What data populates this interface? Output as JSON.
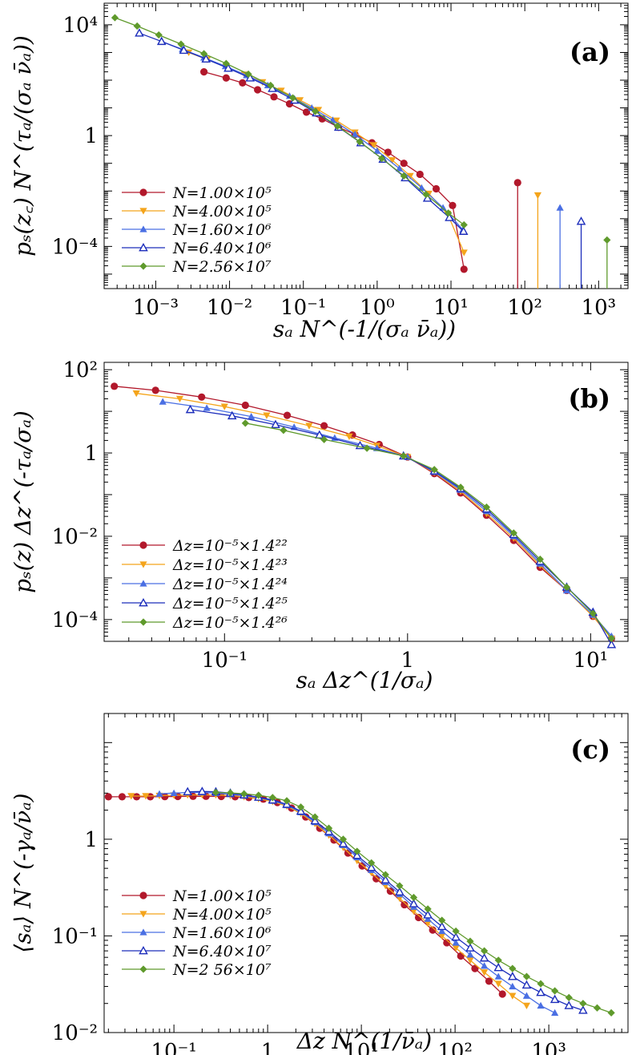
{
  "chart_data": [
    {
      "panel_label": "(a)",
      "type": "line",
      "xscale": "log",
      "yscale": "log",
      "xlim": [
        0.0002,
        2500
      ],
      "ylim": [
        3e-06,
        60000
      ],
      "xticks": [
        {
          "v": 0.001,
          "label": "10⁻³"
        },
        {
          "v": 0.01,
          "label": "10⁻²"
        },
        {
          "v": 0.1,
          "label": "10⁻¹"
        },
        {
          "v": 1,
          "label": "10⁰"
        },
        {
          "v": 10,
          "label": "10¹"
        },
        {
          "v": 100,
          "label": "10²"
        },
        {
          "v": 1000,
          "label": "10³"
        }
      ],
      "yticks": [
        {
          "v": 0.0001,
          "label": "10⁻⁴"
        },
        {
          "v": 1,
          "label": "1"
        },
        {
          "v": 10000,
          "label": "10⁴"
        }
      ],
      "xlabel": "s_a N^{-1/(σ_a ν̄_a)}",
      "ylabel": "p_s(z_c) N^{τ_a/(σ_a ν̄_a)}",
      "legend_position": "bottom-left",
      "series": [
        {
          "name": "N=1.00×10⁵",
          "color": "#b2182b",
          "marker": "circle",
          "x": [
            0.0045,
            0.009,
            0.015,
            0.024,
            0.04,
            0.065,
            0.11,
            0.18,
            0.3,
            0.5,
            0.85,
            1.4,
            2.3,
            3.8,
            6.3,
            10.5,
            15.0
          ],
          "y": [
            200,
            120,
            80,
            45,
            25,
            14,
            7,
            4,
            2,
            1.1,
            0.55,
            0.25,
            0.1,
            0.04,
            0.012,
            0.003,
            1.5e-05
          ],
          "spike_x": 80,
          "spike_y": 0.02
        },
        {
          "name": "N=4.00×10⁵",
          "color": "#f4a41b",
          "marker": "triangle-down",
          "x": [
            0.0028,
            0.005,
            0.009,
            0.016,
            0.028,
            0.05,
            0.09,
            0.16,
            0.28,
            0.5,
            0.9,
            1.6,
            2.8,
            5.0,
            9.0,
            15.0
          ],
          "y": [
            1000,
            560,
            300,
            160,
            85,
            42,
            19,
            8.5,
            3.5,
            1.3,
            0.45,
            0.13,
            0.035,
            0.008,
            0.0015,
            6e-05
          ],
          "spike_x": 150,
          "spike_y": 0.007
        },
        {
          "name": "N=1.60×10⁶",
          "color": "#4a6fe3",
          "marker": "triangle-up",
          "x": [
            0.0012,
            0.0023,
            0.0045,
            0.0088,
            0.017,
            0.033,
            0.065,
            0.13,
            0.25,
            0.5,
            1.0,
            2.0,
            4.0,
            7.8,
            14.5
          ],
          "y": [
            2500,
            1300,
            650,
            320,
            150,
            65,
            27,
            10,
            3.6,
            1.1,
            0.28,
            0.065,
            0.013,
            0.0025,
            0.0004
          ],
          "spike_x": 300,
          "spike_y": 0.0025
        },
        {
          "name": "N=6.40×10⁶",
          "color": "#1c2dbb",
          "marker": "triangle-up-open",
          "x": [
            0.0006,
            0.0012,
            0.0024,
            0.0048,
            0.0096,
            0.019,
            0.038,
            0.076,
            0.15,
            0.3,
            0.6,
            1.2,
            2.4,
            4.8,
            9.5,
            14.8
          ],
          "y": [
            5000,
            2500,
            1200,
            580,
            270,
            120,
            50,
            19,
            6.6,
            2.0,
            0.55,
            0.14,
            0.03,
            0.0055,
            0.0011,
            0.00035
          ],
          "spike_x": 580,
          "spike_y": 0.0008
        },
        {
          "name": "N=2.56×10⁷",
          "color": "#5f9a2c",
          "marker": "diamond",
          "x": [
            0.00028,
            0.00056,
            0.0011,
            0.0022,
            0.0045,
            0.009,
            0.018,
            0.036,
            0.072,
            0.145,
            0.29,
            0.58,
            1.15,
            2.3,
            4.6,
            9.2,
            15.0
          ],
          "y": [
            18000,
            9000,
            4300,
            2000,
            900,
            400,
            165,
            65,
            23,
            7.5,
            2.2,
            0.6,
            0.15,
            0.035,
            0.0075,
            0.0016,
            0.0006
          ],
          "spike_x": 1300,
          "spike_y": 0.00017
        }
      ]
    },
    {
      "panel_label": "(b)",
      "type": "line",
      "xscale": "log",
      "yscale": "log",
      "xlim": [
        0.022,
        16
      ],
      "ylim": [
        3e-05,
        150
      ],
      "xticks": [
        {
          "v": 0.1,
          "label": "10⁻¹"
        },
        {
          "v": 1,
          "label": "1"
        },
        {
          "v": 10,
          "label": "10¹"
        }
      ],
      "yticks": [
        {
          "v": 0.0001,
          "label": "10⁻⁴"
        },
        {
          "v": 0.01,
          "label": "10⁻²"
        },
        {
          "v": 1,
          "label": "1"
        },
        {
          "v": 100,
          "label": "10²"
        }
      ],
      "xlabel": "s_a Δz^{1/σ_a}",
      "ylabel": "p_s(z) Δz^{-τ_a/σ_a}",
      "legend_position": "bottom-left",
      "series": [
        {
          "name": "Δz=10⁻⁵×1.4²²",
          "color": "#b2182b",
          "marker": "circle",
          "x": [
            0.025,
            0.042,
            0.075,
            0.13,
            0.22,
            0.35,
            0.5,
            0.7,
            1.0,
            1.4,
            1.95,
            2.7,
            3.8,
            5.3,
            7.4,
            10.3,
            13.0
          ],
          "y": [
            40,
            32,
            22,
            14,
            8,
            4.5,
            2.7,
            1.6,
            0.8,
            0.32,
            0.11,
            0.032,
            0.008,
            0.0018,
            0.0005,
            0.00012,
            3.5e-05
          ]
        },
        {
          "name": "Δz=10⁻⁵×1.4²³",
          "color": "#f4a41b",
          "marker": "triangle-down",
          "x": [
            0.033,
            0.057,
            0.1,
            0.17,
            0.29,
            0.48,
            0.68,
            1.0,
            1.4,
            1.95,
            2.7,
            3.8,
            5.3,
            7.4,
            10.3,
            13.0
          ],
          "y": [
            27,
            20,
            13,
            8,
            4.5,
            2.5,
            1.5,
            0.8,
            0.34,
            0.12,
            0.035,
            0.009,
            0.002,
            0.0005,
            0.00012,
            3.5e-05
          ]
        },
        {
          "name": "Δz=10⁻⁵×1.4²⁴",
          "color": "#4a6fe3",
          "marker": "triangle-up",
          "x": [
            0.046,
            0.08,
            0.14,
            0.24,
            0.4,
            0.68,
            1.0,
            1.4,
            1.95,
            2.7,
            3.8,
            5.3,
            7.4,
            10.3,
            13.0
          ],
          "y": [
            17,
            12,
            7.5,
            4.2,
            2.3,
            1.3,
            0.8,
            0.35,
            0.13,
            0.04,
            0.01,
            0.0022,
            0.0005,
            0.00013,
            4e-05
          ]
        },
        {
          "name": "Δz=10⁻⁵×1.4²⁵",
          "color": "#1c2dbb",
          "marker": "triangle-up-open",
          "x": [
            0.065,
            0.11,
            0.19,
            0.33,
            0.55,
            0.95,
            1.4,
            1.95,
            2.7,
            3.8,
            5.3,
            7.4,
            10.3,
            13.0
          ],
          "y": [
            11,
            7.8,
            4.8,
            2.7,
            1.5,
            0.85,
            0.37,
            0.14,
            0.045,
            0.011,
            0.0025,
            0.0006,
            0.00015,
            2.5e-05
          ]
        },
        {
          "name": "Δz=10⁻⁵×1.4²⁶",
          "color": "#5f9a2c",
          "marker": "diamond",
          "x": [
            0.13,
            0.21,
            0.35,
            0.6,
            0.95,
            1.4,
            1.95,
            2.7,
            3.8,
            5.3,
            7.4,
            10.3,
            13.0
          ],
          "y": [
            5.2,
            3.5,
            2.1,
            1.3,
            0.85,
            0.4,
            0.15,
            0.05,
            0.012,
            0.0028,
            0.0006,
            0.00014,
            3.5e-05
          ]
        }
      ]
    },
    {
      "panel_label": "(c)",
      "type": "line",
      "xscale": "log",
      "yscale": "log",
      "xlim": [
        0.018,
        7000
      ],
      "ylim": [
        0.01,
        20
      ],
      "xticks": [
        {
          "v": 0.1,
          "label": "10⁻¹"
        },
        {
          "v": 1,
          "label": "1"
        },
        {
          "v": 10,
          "label": "10¹"
        },
        {
          "v": 100,
          "label": "10²"
        },
        {
          "v": 1000,
          "label": "10³"
        }
      ],
      "yticks": [
        {
          "v": 0.01,
          "label": "10⁻²"
        },
        {
          "v": 0.1,
          "label": "10⁻¹"
        },
        {
          "v": 1,
          "label": "1"
        }
      ],
      "xlabel": "Δz N^{1/ν̄_a}",
      "ylabel": "⟨s_a⟩ N^{-γ_a/ν̄_a}",
      "legend_position": "bottom-left",
      "series": [
        {
          "name": "N=1.00×10⁵",
          "color": "#b2182b",
          "marker": "circle",
          "x": [
            0.02,
            0.028,
            0.04,
            0.056,
            0.08,
            0.11,
            0.16,
            0.22,
            0.32,
            0.45,
            0.63,
            0.9,
            1.27,
            1.8,
            2.55,
            3.6,
            5.1,
            7.2,
            10.2,
            14.4,
            20.4,
            28.8,
            40.8,
            57.7,
            81.6,
            115,
            163,
            230,
            320
          ],
          "y": [
            2.75,
            2.75,
            2.75,
            2.75,
            2.76,
            2.77,
            2.78,
            2.78,
            2.77,
            2.75,
            2.7,
            2.6,
            2.4,
            2.1,
            1.7,
            1.3,
            0.98,
            0.72,
            0.53,
            0.39,
            0.29,
            0.21,
            0.155,
            0.115,
            0.085,
            0.062,
            0.046,
            0.034,
            0.025
          ]
        },
        {
          "name": "N=4.00×10⁵",
          "color": "#f4a41b",
          "marker": "triangle-down",
          "x": [
            0.035,
            0.05,
            0.07,
            0.1,
            0.14,
            0.2,
            0.28,
            0.4,
            0.56,
            0.8,
            1.13,
            1.6,
            2.26,
            3.2,
            4.5,
            6.4,
            9,
            12.8,
            18.1,
            25.6,
            36.2,
            51.2,
            72.4,
            102,
            145,
            205,
            290,
            410,
            580
          ],
          "y": [
            2.8,
            2.8,
            2.82,
            2.85,
            2.87,
            2.88,
            2.87,
            2.83,
            2.75,
            2.62,
            2.45,
            2.2,
            1.85,
            1.45,
            1.1,
            0.82,
            0.6,
            0.45,
            0.33,
            0.245,
            0.18,
            0.135,
            0.1,
            0.075,
            0.056,
            0.042,
            0.032,
            0.024,
            0.019
          ]
        },
        {
          "name": "N=1.60×10⁶",
          "color": "#4a6fe3",
          "marker": "triangle-up",
          "x": [
            0.07,
            0.1,
            0.14,
            0.2,
            0.28,
            0.4,
            0.56,
            0.8,
            1.13,
            1.6,
            2.26,
            3.2,
            4.5,
            6.4,
            9,
            12.8,
            18.1,
            25.6,
            36.2,
            51.2,
            72.4,
            102,
            145,
            205,
            290,
            410,
            580,
            820,
            1160
          ],
          "y": [
            2.95,
            3.0,
            3.05,
            3.05,
            3.0,
            2.92,
            2.82,
            2.7,
            2.5,
            2.25,
            1.9,
            1.5,
            1.15,
            0.87,
            0.65,
            0.48,
            0.36,
            0.27,
            0.2,
            0.15,
            0.112,
            0.085,
            0.064,
            0.049,
            0.038,
            0.03,
            0.024,
            0.019,
            0.016
          ]
        },
        {
          "name": "N=6.40×10⁷",
          "color": "#1c2dbb",
          "marker": "triangle-up-open",
          "x": [
            0.14,
            0.2,
            0.28,
            0.4,
            0.56,
            0.8,
            1.13,
            1.6,
            2.26,
            3.2,
            4.5,
            6.4,
            9,
            12.8,
            18.1,
            25.6,
            36.2,
            51.2,
            72.4,
            102,
            145,
            205,
            290,
            410,
            580,
            820,
            1160,
            1640,
            2320
          ],
          "y": [
            3.1,
            3.12,
            3.1,
            3.0,
            2.88,
            2.72,
            2.55,
            2.3,
            1.95,
            1.55,
            1.2,
            0.9,
            0.68,
            0.51,
            0.38,
            0.285,
            0.215,
            0.165,
            0.125,
            0.097,
            0.075,
            0.059,
            0.047,
            0.038,
            0.031,
            0.026,
            0.022,
            0.019,
            0.017
          ]
        },
        {
          "name": "N=2 56×10⁷",
          "color": "#5f9a2c",
          "marker": "diamond",
          "x": [
            0.28,
            0.4,
            0.56,
            0.8,
            1.13,
            1.6,
            2.26,
            3.2,
            4.5,
            6.4,
            9,
            12.8,
            18.1,
            25.6,
            36.2,
            51.2,
            72.4,
            102,
            145,
            205,
            290,
            410,
            580,
            820,
            1160,
            1640,
            2320,
            3280,
            4640
          ],
          "y": [
            3.05,
            3.02,
            2.95,
            2.85,
            2.7,
            2.5,
            2.15,
            1.7,
            1.3,
            1.0,
            0.75,
            0.57,
            0.43,
            0.33,
            0.25,
            0.19,
            0.145,
            0.112,
            0.088,
            0.07,
            0.056,
            0.046,
            0.038,
            0.032,
            0.027,
            0.023,
            0.02,
            0.018,
            0.016
          ]
        }
      ]
    }
  ]
}
